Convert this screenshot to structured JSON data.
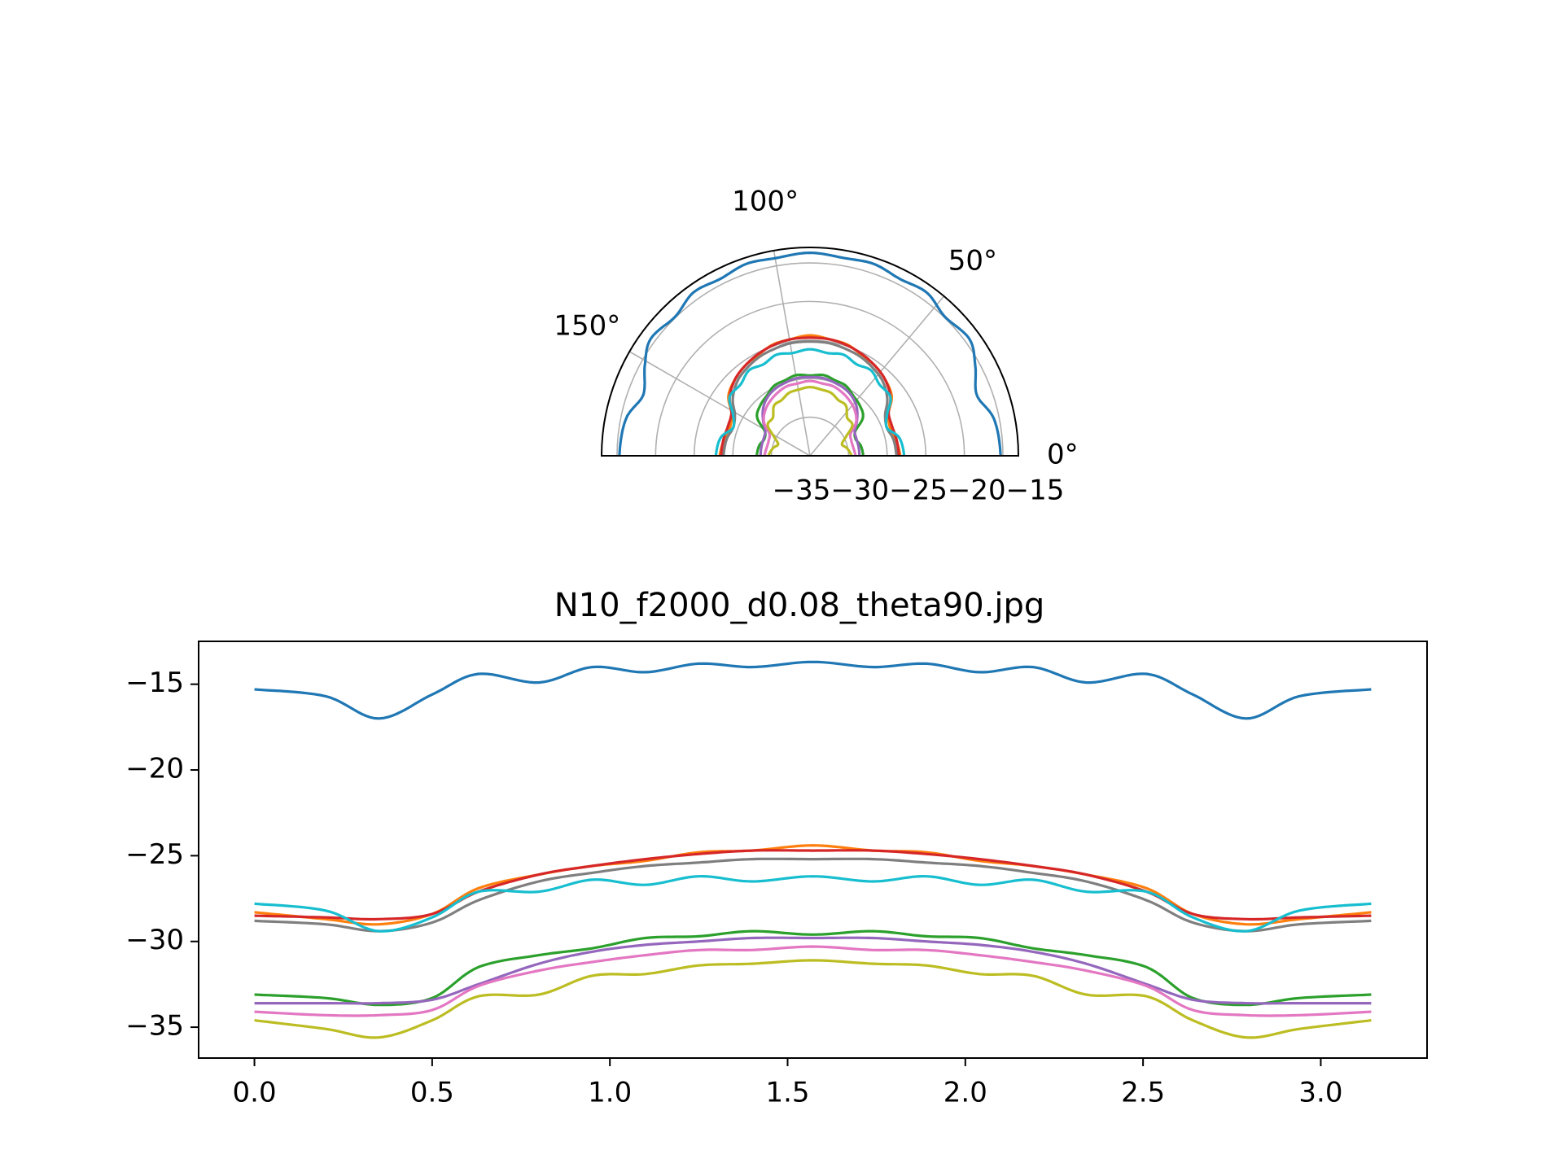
{
  "chart_data": [
    {
      "type": "line",
      "projection": "polar",
      "theta_range_deg": [
        0,
        180
      ],
      "r_range": [
        -40,
        -13
      ],
      "theta_tick_labels": [
        "0°",
        "50°",
        "100°",
        "150°"
      ],
      "r_tick_values": [
        -35,
        -30,
        -25,
        -20,
        -15
      ],
      "r_tick_text": "−35−30−25−20−15",
      "grid": true,
      "same_series_as": "cartesian panel below"
    },
    {
      "type": "line",
      "title": "N10_f2000_d0.08_theta90.jpg",
      "xlabel": "",
      "ylabel": "",
      "xlim": [
        -0.157,
        3.299
      ],
      "ylim": [
        -36.8,
        -12.5
      ],
      "x_ticks": [
        "0.0",
        "0.5",
        "1.0",
        "1.5",
        "2.0",
        "2.5",
        "3.0"
      ],
      "y_ticks": [
        "−15",
        "−20",
        "−25",
        "−30",
        "−35"
      ],
      "grid": false,
      "x": [
        0,
        0.2,
        0.35,
        0.5,
        0.63,
        0.8,
        0.95,
        1.1,
        1.25,
        1.4,
        1.571,
        1.74,
        1.89,
        2.04,
        2.19,
        2.34,
        2.51,
        2.64,
        2.79,
        2.94,
        3.142
      ],
      "series": [
        {
          "color": "#1f77b4",
          "values": [
            -15.3,
            -15.7,
            -17.0,
            -15.6,
            -14.4,
            -14.9,
            -14.0,
            -14.3,
            -13.8,
            -14.0,
            -13.7,
            -14.0,
            -13.8,
            -14.3,
            -14.0,
            -14.9,
            -14.4,
            -15.6,
            -17.0,
            -15.7,
            -15.3
          ]
        },
        {
          "color": "#ff7f0e",
          "values": [
            -28.3,
            -28.7,
            -29.0,
            -28.4,
            -26.9,
            -26.1,
            -25.6,
            -25.3,
            -24.8,
            -24.7,
            -24.4,
            -24.7,
            -24.8,
            -25.3,
            -25.6,
            -26.1,
            -26.9,
            -28.4,
            -29.0,
            -28.7,
            -28.3
          ]
        },
        {
          "color": "#2ca02c",
          "values": [
            -33.1,
            -33.3,
            -33.7,
            -33.3,
            -31.5,
            -30.8,
            -30.4,
            -29.8,
            -29.7,
            -29.4,
            -29.6,
            -29.4,
            -29.7,
            -29.8,
            -30.4,
            -30.8,
            -31.5,
            -33.3,
            -33.7,
            -33.3,
            -33.1
          ]
        },
        {
          "color": "#d62728",
          "values": [
            -28.5,
            -28.6,
            -28.7,
            -28.4,
            -27.1,
            -26.1,
            -25.6,
            -25.2,
            -24.9,
            -24.7,
            -24.7,
            -24.7,
            -24.9,
            -25.2,
            -25.6,
            -26.1,
            -27.1,
            -28.4,
            -28.7,
            -28.6,
            -28.5
          ]
        },
        {
          "color": "#9467bd",
          "values": [
            -33.6,
            -33.6,
            -33.6,
            -33.4,
            -32.5,
            -31.3,
            -30.6,
            -30.2,
            -30.0,
            -29.8,
            -29.8,
            -29.8,
            -30.0,
            -30.2,
            -30.6,
            -31.3,
            -32.5,
            -33.4,
            -33.6,
            -33.6,
            -33.6
          ]
        },
        {
          "color": "#e377c2",
          "values": [
            -34.1,
            -34.3,
            -34.3,
            -34.0,
            -32.6,
            -31.7,
            -31.2,
            -30.8,
            -30.5,
            -30.5,
            -30.3,
            -30.5,
            -30.5,
            -30.8,
            -31.2,
            -31.7,
            -32.6,
            -34.0,
            -34.3,
            -34.3,
            -34.1
          ]
        },
        {
          "color": "#7f7f7f",
          "values": [
            -28.8,
            -29.0,
            -29.4,
            -28.9,
            -27.6,
            -26.5,
            -26.0,
            -25.6,
            -25.4,
            -25.2,
            -25.2,
            -25.2,
            -25.4,
            -25.6,
            -26.0,
            -26.5,
            -27.6,
            -28.9,
            -29.4,
            -29.0,
            -28.8
          ]
        },
        {
          "color": "#bcbd22",
          "values": [
            -34.6,
            -35.1,
            -35.6,
            -34.6,
            -33.2,
            -33.1,
            -32.0,
            -31.9,
            -31.4,
            -31.3,
            -31.1,
            -31.3,
            -31.4,
            -31.9,
            -32.0,
            -33.1,
            -33.2,
            -34.6,
            -35.6,
            -35.1,
            -34.6
          ]
        },
        {
          "color": "#17becf",
          "values": [
            -27.8,
            -28.2,
            -29.4,
            -28.6,
            -27.1,
            -27.1,
            -26.4,
            -26.7,
            -26.2,
            -26.5,
            -26.2,
            -26.5,
            -26.2,
            -26.7,
            -26.4,
            -27.1,
            -27.1,
            -28.6,
            -29.4,
            -28.2,
            -27.8
          ]
        }
      ]
    }
  ]
}
